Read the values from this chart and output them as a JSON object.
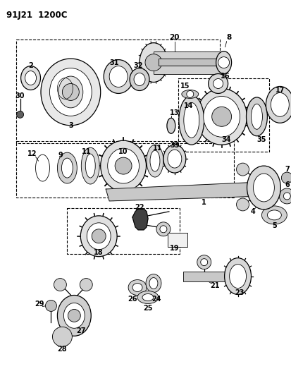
{
  "title": "91J21  1200C",
  "bg_color": "#ffffff",
  "line_color": "#000000",
  "figsize": [
    4.14,
    5.33
  ],
  "dpi": 100
}
